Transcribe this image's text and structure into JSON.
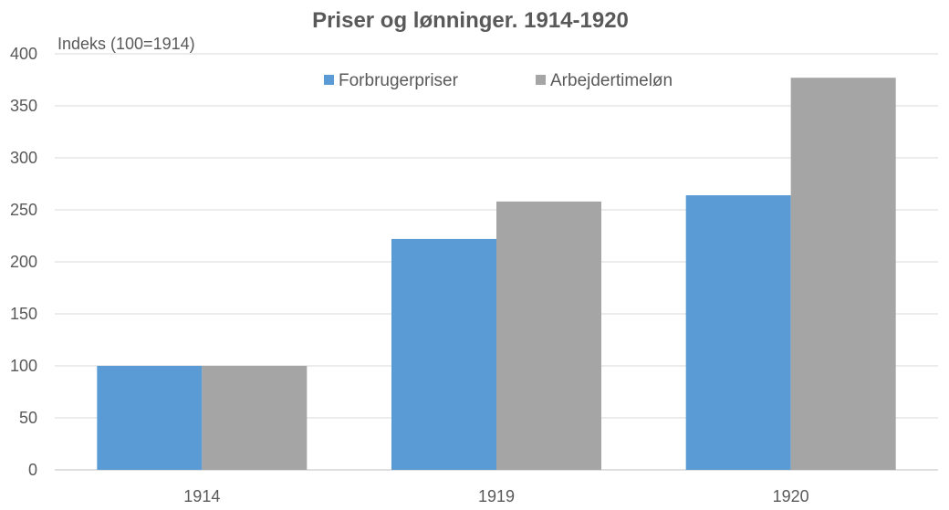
{
  "chart_data": {
    "type": "bar",
    "title": "Priser og lønninger. 1914-1920",
    "ylabel": "Indeks (100=1914)",
    "xlabel": "",
    "categories": [
      "1914",
      "1919",
      "1920"
    ],
    "series": [
      {
        "name": "Forbrugerpriser",
        "values": [
          100,
          222,
          264
        ],
        "color": "#5b9bd5"
      },
      {
        "name": "Arbejdertimeløn",
        "values": [
          100,
          258,
          377
        ],
        "color": "#a5a5a5"
      }
    ],
    "ylim": [
      0,
      400
    ],
    "yticks": [
      0,
      50,
      100,
      150,
      200,
      250,
      300,
      350,
      400
    ],
    "grid": true,
    "legend_position": "top-center"
  }
}
